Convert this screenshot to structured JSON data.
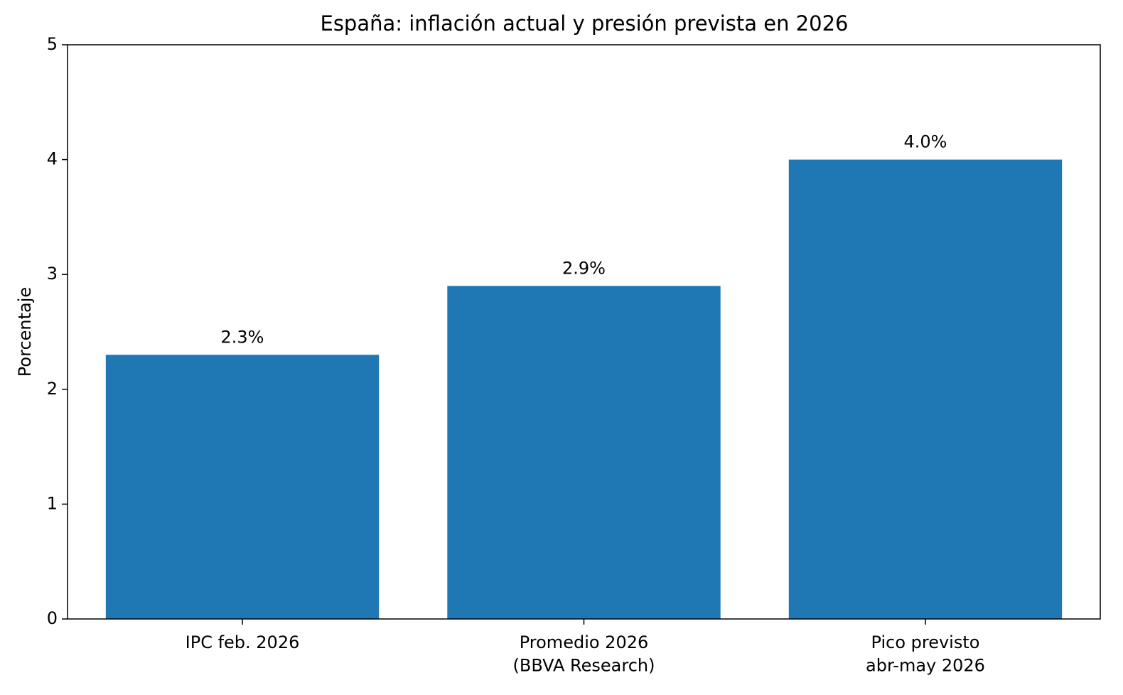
{
  "chart_data": {
    "type": "bar",
    "title": "España: inflación actual y presión prevista en 2026",
    "y_label": "Porcentaje",
    "categories": [
      "IPC feb. 2026",
      "Promedio 2026\n(BBVA Research)",
      "Pico previsto\nabr-may 2026"
    ],
    "values": [
      2.3,
      2.9,
      4.0
    ],
    "value_labels": [
      "2.3%",
      "2.9%",
      "4.0%"
    ],
    "color": "#1f77b4",
    "ylim": [
      0,
      5
    ],
    "yticks": [
      0,
      1,
      2,
      3,
      4,
      5
    ],
    "grid": false
  }
}
